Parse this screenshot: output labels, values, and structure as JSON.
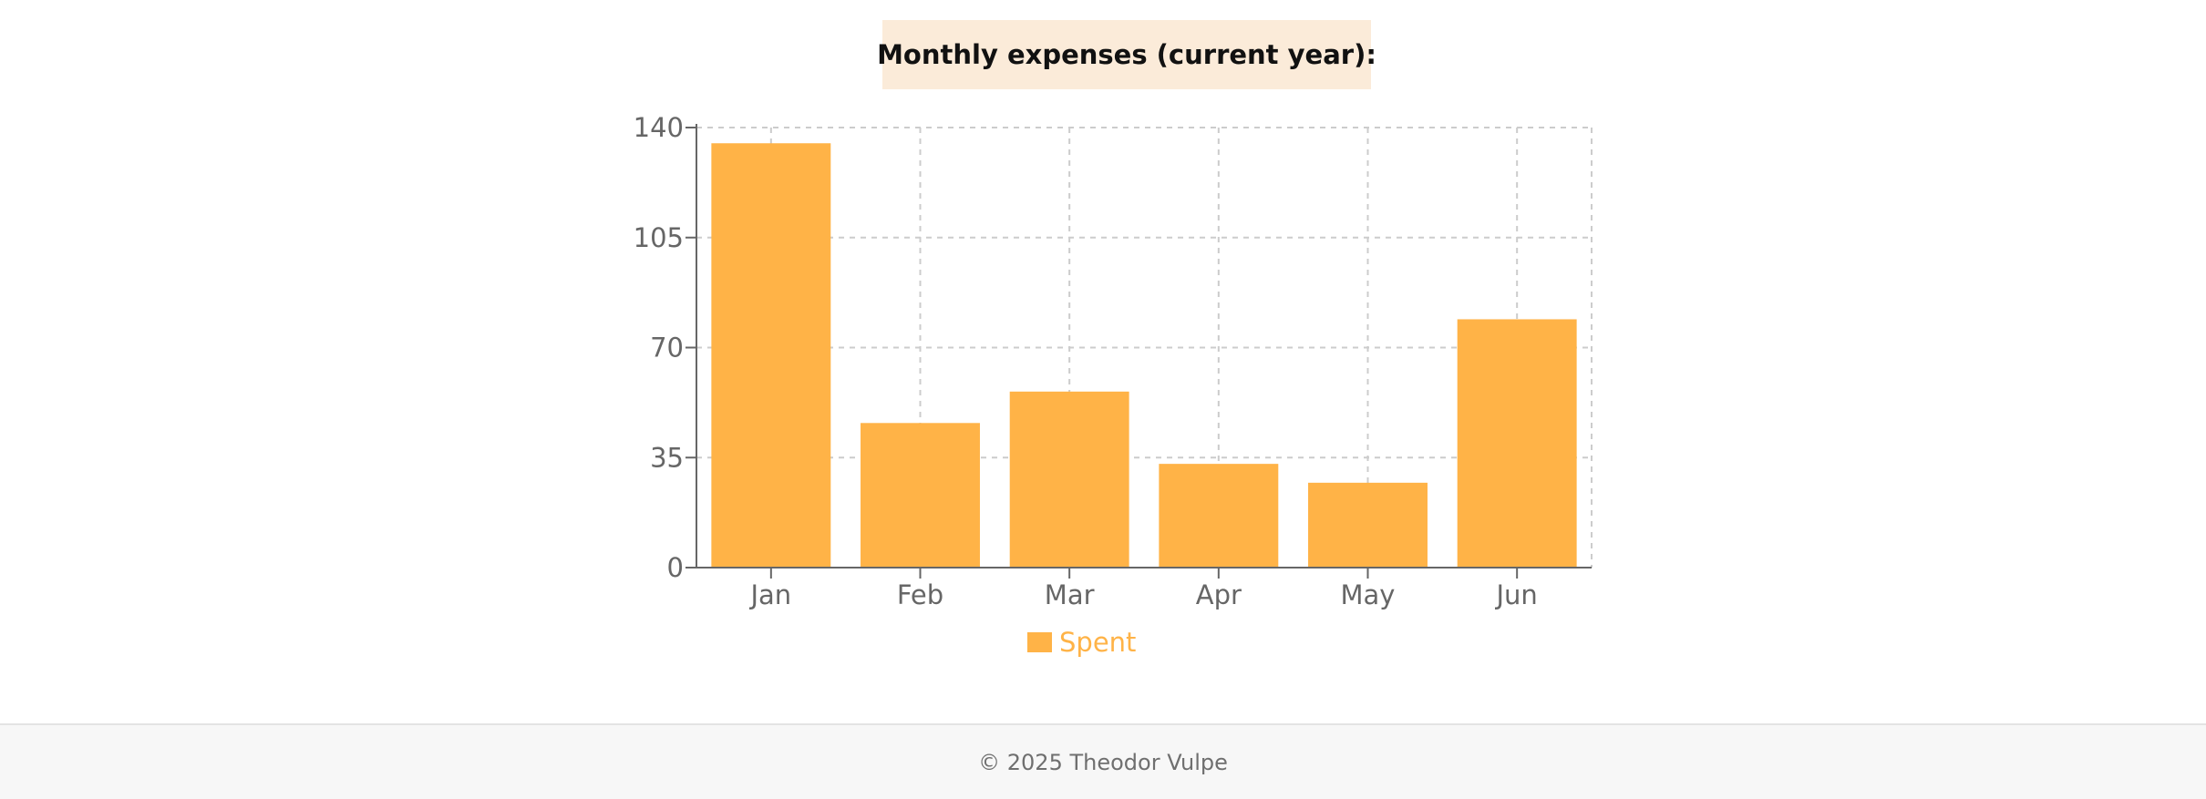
{
  "header": {
    "title": "Monthly expenses (current year):"
  },
  "chart_data": {
    "type": "bar",
    "categories": [
      "Jan",
      "Feb",
      "Mar",
      "Apr",
      "May",
      "Jun"
    ],
    "series": [
      {
        "name": "Spent",
        "values": [
          135,
          46,
          56,
          33,
          27,
          79
        ]
      }
    ],
    "yticks": [
      0,
      35,
      70,
      105,
      140
    ],
    "ylim": [
      0,
      140
    ],
    "grid": true,
    "legend_position": "bottom-center",
    "colors": {
      "bar": "#ffb347",
      "grid": "#cccccc",
      "axis": "#666666",
      "tick_label": "#666666",
      "legend_text": "#ffb347"
    }
  },
  "footer": {
    "copyright": "© 2025 Theodor Vulpe"
  }
}
